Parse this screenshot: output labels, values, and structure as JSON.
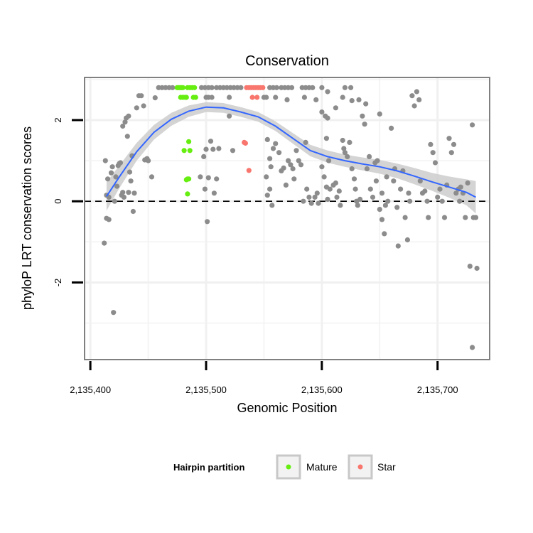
{
  "chart_data": {
    "type": "scatter",
    "title": "Conservation",
    "xlabel": "Genomic Position",
    "ylabel": "phyloP LRT conservation scores",
    "xlim": [
      2135395,
      2135745
    ],
    "ylim": [
      -3.9,
      3.05
    ],
    "x_ticks": [
      2135400,
      2135500,
      2135600,
      2135700
    ],
    "x_tick_labels": [
      "2,135,400",
      "2,135,500",
      "2,135,600",
      "2,135,700"
    ],
    "y_ticks": [
      -2,
      0,
      2
    ],
    "y_tick_labels": [
      "-2",
      "0",
      "2"
    ],
    "grid": true,
    "reference_line": {
      "y": 0,
      "style": "dashed"
    },
    "legend": {
      "title": "Hairpin partition",
      "position": "bottom",
      "entries": [
        {
          "label": "Mature",
          "color": "#66ee11"
        },
        {
          "label": "Star",
          "color": "#f8766d"
        }
      ]
    },
    "colors": {
      "other_points": "#8c8c8c",
      "smooth_line": "#3366ff",
      "smooth_band": "#cccccc",
      "mature": "#66ee11",
      "star": "#f8766d"
    },
    "series": [
      {
        "name": "Mature",
        "color": "#66ee11",
        "points": [
          [
            2135475,
            2.8
          ],
          [
            2135476,
            2.8
          ],
          [
            2135477,
            2.8
          ],
          [
            2135478,
            2.8
          ],
          [
            2135479,
            2.8
          ],
          [
            2135480,
            2.8
          ],
          [
            2135484,
            2.8
          ],
          [
            2135486,
            2.8
          ],
          [
            2135488,
            2.8
          ],
          [
            2135490,
            2.8
          ],
          [
            2135478,
            2.56
          ],
          [
            2135480,
            2.56
          ],
          [
            2135482,
            2.56
          ],
          [
            2135483,
            2.56
          ],
          [
            2135489,
            2.56
          ],
          [
            2135491,
            2.56
          ],
          [
            2135485,
            1.47
          ],
          [
            2135481,
            1.25
          ],
          [
            2135486,
            1.25
          ],
          [
            2135483,
            0.53
          ],
          [
            2135484,
            0.55
          ],
          [
            2135485,
            0.55
          ],
          [
            2135484,
            0.18
          ]
        ]
      },
      {
        "name": "Star",
        "color": "#f8766d",
        "points": [
          [
            2135535,
            2.8
          ],
          [
            2135537,
            2.8
          ],
          [
            2135539,
            2.8
          ],
          [
            2135541,
            2.8
          ],
          [
            2135543,
            2.8
          ],
          [
            2135545,
            2.8
          ],
          [
            2135547,
            2.8
          ],
          [
            2135549,
            2.8
          ],
          [
            2135540,
            2.56
          ],
          [
            2135544,
            2.56
          ],
          [
            2135533,
            1.45
          ],
          [
            2135534,
            1.43
          ],
          [
            2135537,
            0.76
          ]
        ]
      },
      {
        "name": "",
        "color": "#8c8c8c",
        "points": [
          [
            2135412,
            -1.03
          ],
          [
            2135413,
            1.0
          ],
          [
            2135415,
            0.55
          ],
          [
            2135414,
            -0.42
          ],
          [
            2135416,
            -0.45
          ],
          [
            2135414,
            0.15
          ],
          [
            2135416,
            0.1
          ],
          [
            2135418,
            0.7
          ],
          [
            2135419,
            0.85
          ],
          [
            2135420,
            -2.74
          ],
          [
            2135421,
            0.0
          ],
          [
            2135422,
            0.6
          ],
          [
            2135424,
            0.88
          ],
          [
            2135425,
            0.93
          ],
          [
            2135426,
            0.95
          ],
          [
            2135423,
            0.37
          ],
          [
            2135427,
            0.15
          ],
          [
            2135428,
            0.22
          ],
          [
            2135429,
            0.1
          ],
          [
            2135428,
            1.85
          ],
          [
            2135430,
            1.95
          ],
          [
            2135431,
            2.05
          ],
          [
            2135432,
            1.6
          ],
          [
            2135433,
            2.1
          ],
          [
            2135433,
            0.22
          ],
          [
            2135434,
            0.72
          ],
          [
            2135435,
            0.5
          ],
          [
            2135436,
            1.12
          ],
          [
            2135437,
            -0.25
          ],
          [
            2135438,
            0.2
          ],
          [
            2135440,
            2.3
          ],
          [
            2135442,
            2.6
          ],
          [
            2135444,
            2.6
          ],
          [
            2135446,
            2.35
          ],
          [
            2135447,
            1.02
          ],
          [
            2135449,
            1.05
          ],
          [
            2135450,
            1.0
          ],
          [
            2135453,
            0.6
          ],
          [
            2135456,
            2.55
          ],
          [
            2135459,
            2.8
          ],
          [
            2135462,
            2.8
          ],
          [
            2135465,
            2.8
          ],
          [
            2135468,
            2.8
          ],
          [
            2135471,
            2.8
          ],
          [
            2135496,
            2.8
          ],
          [
            2135499,
            2.8
          ],
          [
            2135502,
            2.8
          ],
          [
            2135505,
            2.8
          ],
          [
            2135509,
            2.8
          ],
          [
            2135512,
            2.8
          ],
          [
            2135515,
            2.8
          ],
          [
            2135518,
            2.8
          ],
          [
            2135521,
            2.8
          ],
          [
            2135524,
            2.8
          ],
          [
            2135527,
            2.8
          ],
          [
            2135530,
            2.8
          ],
          [
            2135555,
            2.8
          ],
          [
            2135558,
            2.8
          ],
          [
            2135561,
            2.8
          ],
          [
            2135565,
            2.8
          ],
          [
            2135568,
            2.8
          ],
          [
            2135571,
            2.8
          ],
          [
            2135574,
            2.8
          ],
          [
            2135583,
            2.8
          ],
          [
            2135586,
            2.8
          ],
          [
            2135589,
            2.8
          ],
          [
            2135592,
            2.8
          ],
          [
            2135600,
            2.8
          ],
          [
            2135605,
            2.7
          ],
          [
            2135620,
            2.8
          ],
          [
            2135625,
            2.8
          ],
          [
            2135500,
            2.56
          ],
          [
            2135502,
            2.56
          ],
          [
            2135505,
            2.56
          ],
          [
            2135520,
            2.56
          ],
          [
            2135550,
            2.56
          ],
          [
            2135552,
            2.56
          ],
          [
            2135560,
            2.56
          ],
          [
            2135585,
            2.56
          ],
          [
            2135618,
            2.56
          ],
          [
            2135626,
            2.48
          ],
          [
            2135632,
            2.5
          ],
          [
            2135638,
            2.4
          ],
          [
            2135500,
            1.28
          ],
          [
            2135498,
            1.1
          ],
          [
            2135504,
            1.48
          ],
          [
            2135506,
            1.28
          ],
          [
            2135511,
            1.3
          ],
          [
            2135523,
            1.25
          ],
          [
            2135495,
            0.6
          ],
          [
            2135502,
            0.58
          ],
          [
            2135509,
            0.55
          ],
          [
            2135499,
            0.3
          ],
          [
            2135507,
            0.2
          ],
          [
            2135501,
            -0.5
          ],
          [
            2135553,
            1.52
          ],
          [
            2135558,
            1.3
          ],
          [
            2135560,
            1.42
          ],
          [
            2135555,
            1.05
          ],
          [
            2135556,
            0.85
          ],
          [
            2135563,
            1.2
          ],
          [
            2135565,
            0.75
          ],
          [
            2135567,
            0.82
          ],
          [
            2135569,
            0.4
          ],
          [
            2135571,
            1.0
          ],
          [
            2135573,
            0.9
          ],
          [
            2135552,
            0.6
          ],
          [
            2135553,
            0.15
          ],
          [
            2135555,
            0.3
          ],
          [
            2135557,
            -0.1
          ],
          [
            2135575,
            0.8
          ],
          [
            2135576,
            0.55
          ],
          [
            2135578,
            1.25
          ],
          [
            2135580,
            1.0
          ],
          [
            2135582,
            0.9
          ],
          [
            2135586,
            1.45
          ],
          [
            2135584,
            0.0
          ],
          [
            2135587,
            0.3
          ],
          [
            2135589,
            0.1
          ],
          [
            2135591,
            -0.05
          ],
          [
            2135594,
            0.1
          ],
          [
            2135596,
            0.2
          ],
          [
            2135597,
            -0.05
          ],
          [
            2135600,
            2.2
          ],
          [
            2135603,
            2.1
          ],
          [
            2135605,
            2.05
          ],
          [
            2135604,
            1.55
          ],
          [
            2135606,
            1.0
          ],
          [
            2135600,
            0.85
          ],
          [
            2135602,
            0.6
          ],
          [
            2135604,
            0.35
          ],
          [
            2135607,
            0.3
          ],
          [
            2135605,
            0.05
          ],
          [
            2135610,
            0.4
          ],
          [
            2135612,
            0.45
          ],
          [
            2135613,
            0.1
          ],
          [
            2135615,
            0.25
          ],
          [
            2135616,
            -0.1
          ],
          [
            2135618,
            1.5
          ],
          [
            2135619,
            1.3
          ],
          [
            2135620,
            1.2
          ],
          [
            2135622,
            1.1
          ],
          [
            2135624,
            1.45
          ],
          [
            2135626,
            0.8
          ],
          [
            2135628,
            0.55
          ],
          [
            2135629,
            0.3
          ],
          [
            2135630,
            0.0
          ],
          [
            2135631,
            -0.1
          ],
          [
            2135633,
            0.05
          ],
          [
            2135635,
            2.1
          ],
          [
            2135637,
            1.9
          ],
          [
            2135639,
            0.8
          ],
          [
            2135641,
            1.1
          ],
          [
            2135642,
            0.3
          ],
          [
            2135644,
            0.1
          ],
          [
            2135646,
            0.95
          ],
          [
            2135647,
            0.5
          ],
          [
            2135648,
            1.0
          ],
          [
            2135650,
            2.15
          ],
          [
            2135652,
            0.2
          ],
          [
            2135650,
            -0.2
          ],
          [
            2135652,
            -0.45
          ],
          [
            2135654,
            -0.8
          ],
          [
            2135655,
            -0.1
          ],
          [
            2135656,
            0.6
          ],
          [
            2135657,
            0.0
          ],
          [
            2135660,
            1.8
          ],
          [
            2135662,
            0.5
          ],
          [
            2135663,
            0.8
          ],
          [
            2135665,
            -0.15
          ],
          [
            2135666,
            -1.1
          ],
          [
            2135668,
            0.3
          ],
          [
            2135670,
            0.75
          ],
          [
            2135672,
            -0.4
          ],
          [
            2135674,
            -0.95
          ],
          [
            2135675,
            0.2
          ],
          [
            2135676,
            0.0
          ],
          [
            2135678,
            2.6
          ],
          [
            2135680,
            2.35
          ],
          [
            2135682,
            2.7
          ],
          [
            2135684,
            2.5
          ],
          [
            2135685,
            0.5
          ],
          [
            2135687,
            0.2
          ],
          [
            2135689,
            0.25
          ],
          [
            2135691,
            0.0
          ],
          [
            2135692,
            -0.4
          ],
          [
            2135694,
            1.4
          ],
          [
            2135696,
            1.2
          ],
          [
            2135698,
            0.95
          ],
          [
            2135700,
            0.1
          ],
          [
            2135702,
            0.3
          ],
          [
            2135704,
            0.0
          ],
          [
            2135706,
            -0.4
          ],
          [
            2135708,
            0.4
          ],
          [
            2135710,
            1.55
          ],
          [
            2135712,
            1.2
          ],
          [
            2135714,
            1.4
          ],
          [
            2135716,
            0.2
          ],
          [
            2135718,
            0.3
          ],
          [
            2135719,
            0.0
          ],
          [
            2135720,
            0.35
          ],
          [
            2135722,
            0.2
          ],
          [
            2135724,
            -0.4
          ],
          [
            2135726,
            0.45
          ],
          [
            2135728,
            -1.6
          ],
          [
            2135730,
            1.88
          ],
          [
            2135731,
            -0.4
          ],
          [
            2135733,
            -0.4
          ],
          [
            2135734,
            -1.65
          ],
          [
            2135730,
            -3.6
          ],
          [
            2135520,
            2.1
          ],
          [
            2135570,
            2.5
          ],
          [
            2135595,
            2.5
          ],
          [
            2135612,
            2.3
          ]
        ]
      }
    ],
    "smooth": {
      "x": [
        2135414,
        2135425,
        2135440,
        2135455,
        2135470,
        2135485,
        2135500,
        2135515,
        2135530,
        2135545,
        2135560,
        2135575,
        2135590,
        2135605,
        2135620,
        2135635,
        2135650,
        2135665,
        2135680,
        2135695,
        2135710,
        2135725,
        2135733
      ],
      "y": [
        0.12,
        0.6,
        1.22,
        1.7,
        2.02,
        2.22,
        2.32,
        2.3,
        2.2,
        2.08,
        1.85,
        1.55,
        1.25,
        1.1,
        1.0,
        0.92,
        0.85,
        0.75,
        0.62,
        0.48,
        0.35,
        0.22,
        0.1
      ],
      "band": [
        0.35,
        0.28,
        0.22,
        0.18,
        0.16,
        0.14,
        0.12,
        0.12,
        0.12,
        0.12,
        0.12,
        0.13,
        0.14,
        0.15,
        0.15,
        0.16,
        0.17,
        0.18,
        0.2,
        0.22,
        0.26,
        0.32,
        0.4
      ]
    }
  }
}
